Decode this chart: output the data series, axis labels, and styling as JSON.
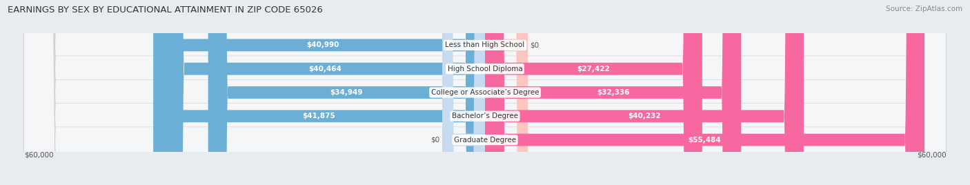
{
  "title": "EARNINGS BY SEX BY EDUCATIONAL ATTAINMENT IN ZIP CODE 65026",
  "source": "Source: ZipAtlas.com",
  "categories": [
    "Less than High School",
    "High School Diploma",
    "College or Associate’s Degree",
    "Bachelor’s Degree",
    "Graduate Degree"
  ],
  "male_values": [
    40990,
    40464,
    34949,
    41875,
    0
  ],
  "female_values": [
    0,
    27422,
    32336,
    40232,
    55484
  ],
  "male_color": "#6baed6",
  "female_color": "#f768a1",
  "male_color_light": "#c6dbef",
  "female_color_light": "#fcc5c0",
  "max_value": 60000,
  "bg_color": "#e8ecf0",
  "row_bg": "#f5f6f8",
  "axis_label": "$60,000",
  "title_fontsize": 9.5,
  "source_fontsize": 7.5,
  "bar_fontsize": 7.5,
  "cat_fontsize": 7.5,
  "tick_fontsize": 7.5
}
